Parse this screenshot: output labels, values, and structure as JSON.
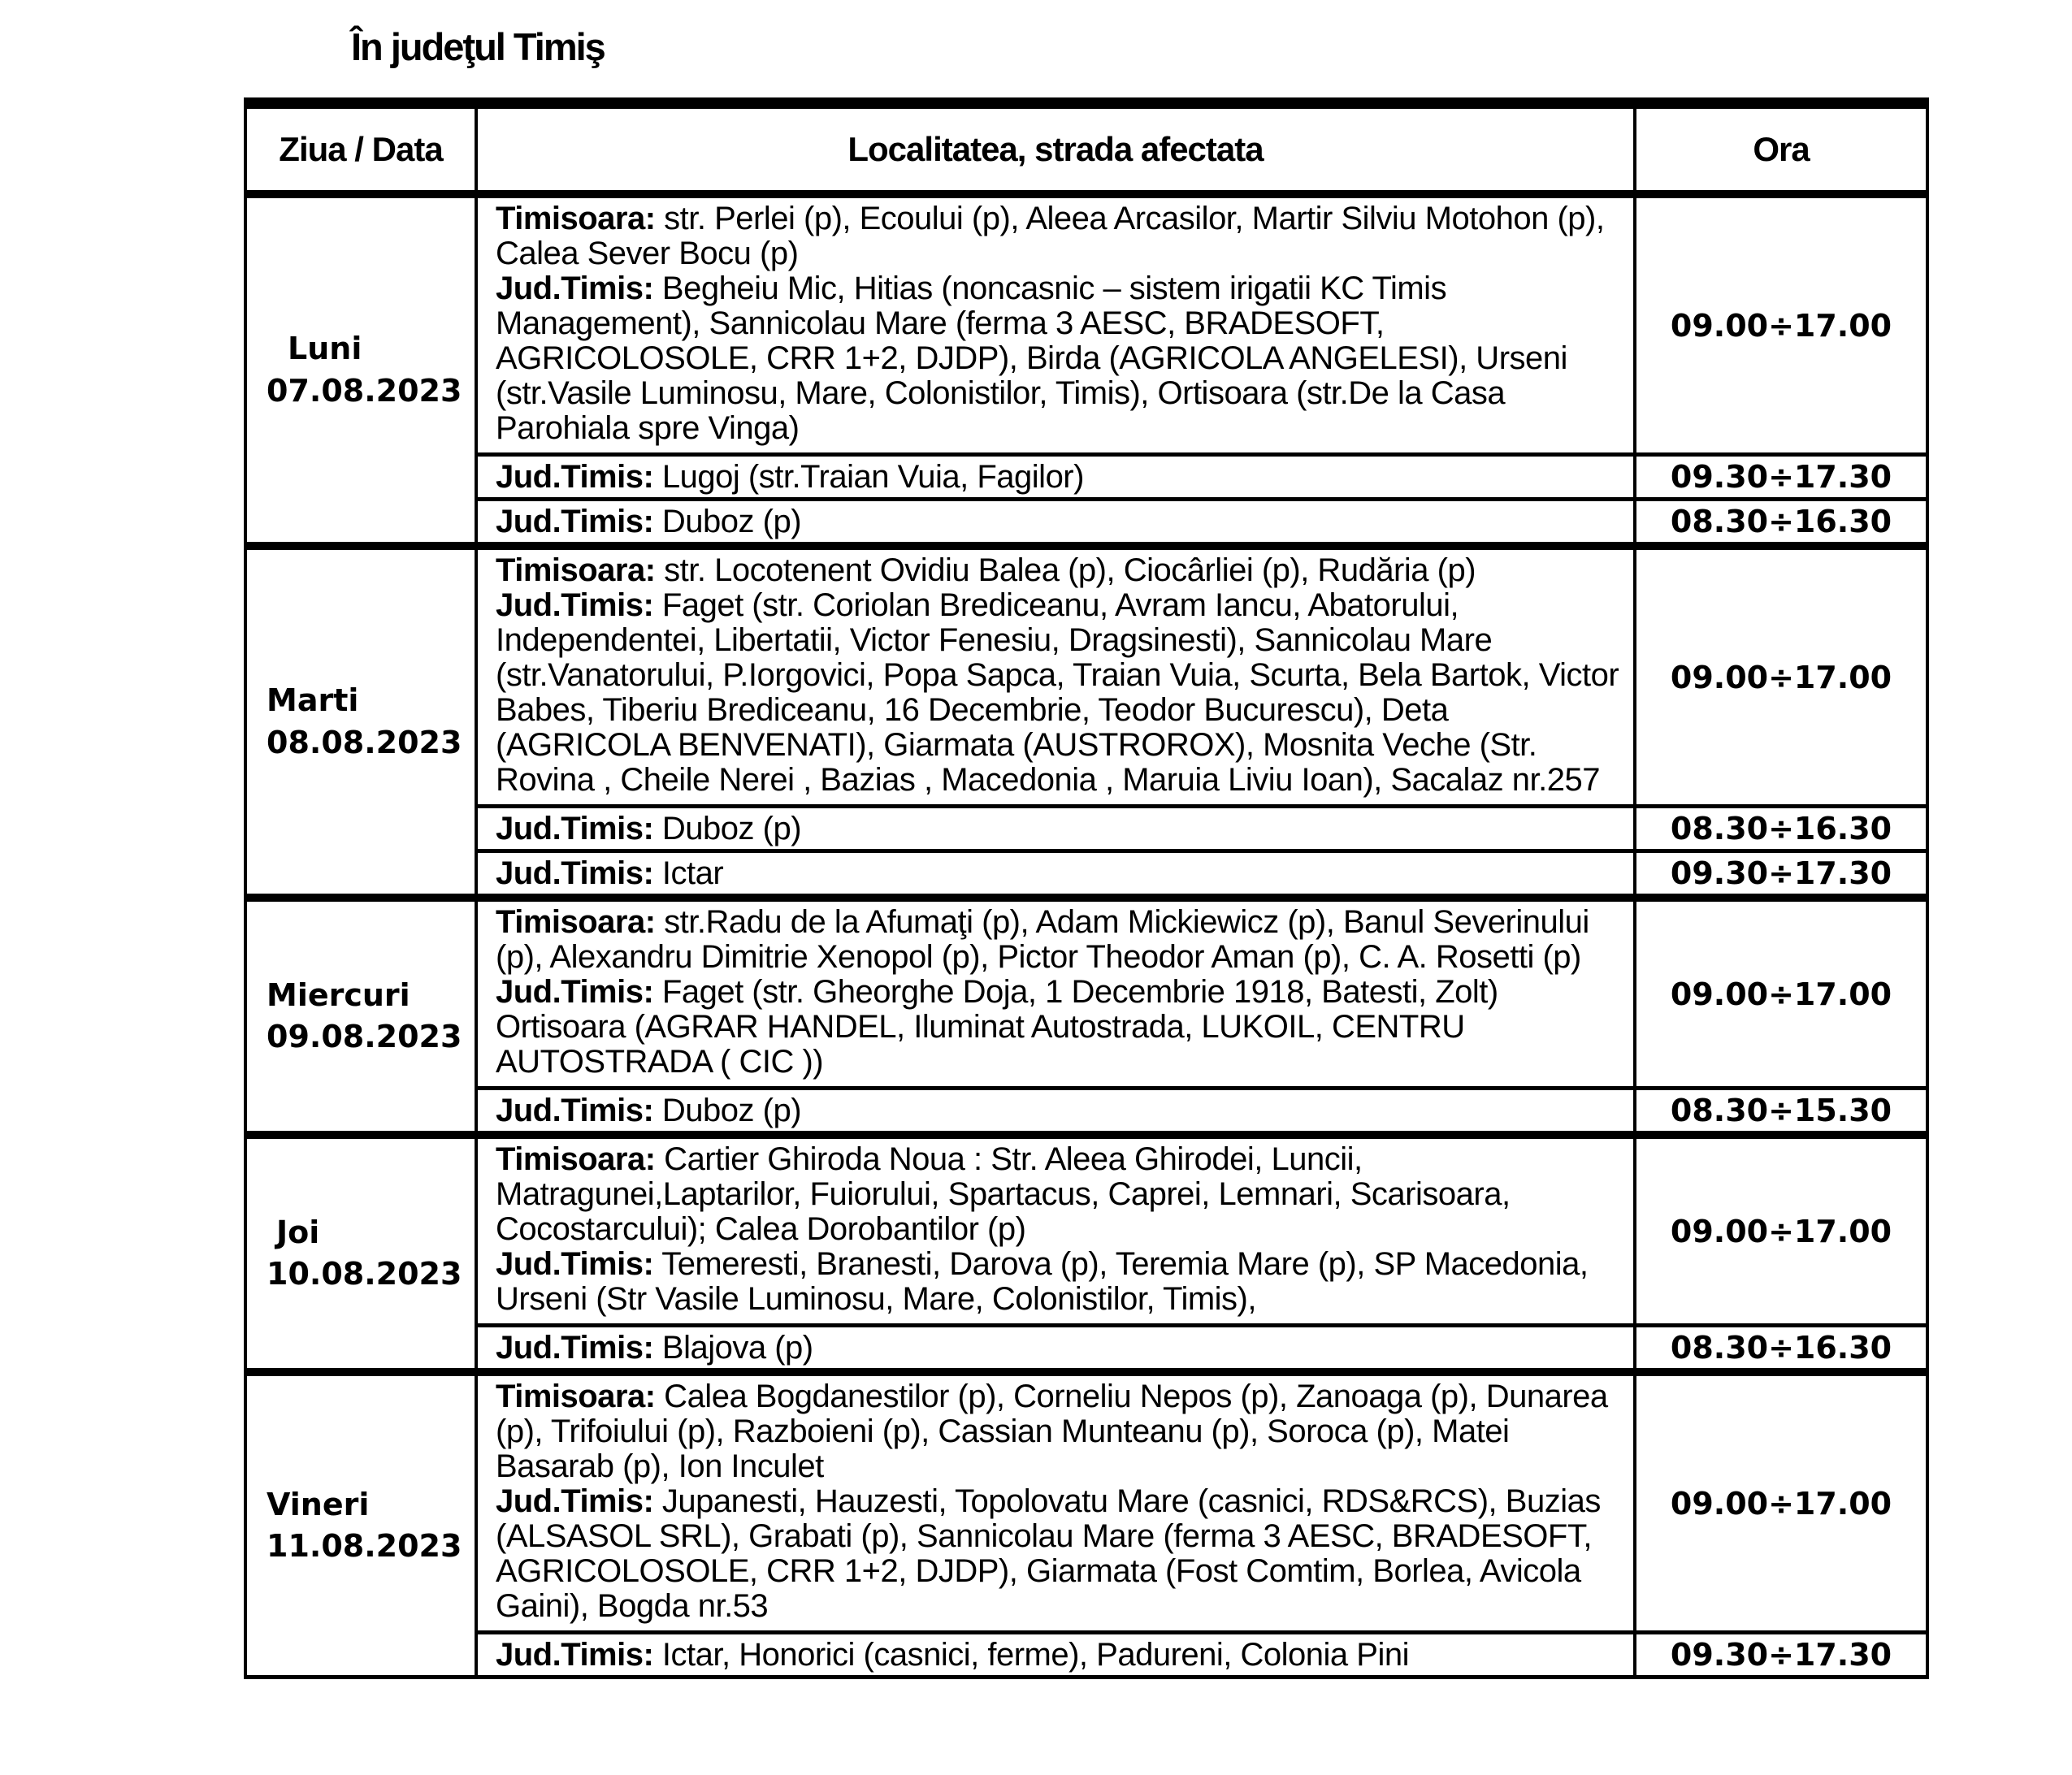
{
  "page": {
    "title": "În judeţul Timiş"
  },
  "table": {
    "headers": {
      "day": "Ziua / Data",
      "location": "Localitatea, strada afectata",
      "time": "Ora"
    },
    "groups": [
      {
        "day": "Luni",
        "date": "07.08.2023",
        "rows": [
          {
            "time": "09.00÷17.00",
            "segments": [
              {
                "label": "Timisoara:",
                "text": " str. Perlei (p), Ecoului (p), Aleea Arcasilor, Martir Silviu Motohon (p), Calea Sever Bocu (p)"
              },
              {
                "label": "Jud.Timis:",
                "text": " Begheiu Mic, Hitias (noncasnic – sistem irigatii KC Timis Management), Sannicolau Mare (ferma 3 AESC, BRADESOFT, AGRICOLOSOLE, CRR 1+2, DJDP), Birda (AGRICOLA ANGELESI), Urseni (str.Vasile Luminosu, Mare, Colonistilor, Timis), Ortisoara (str.De la Casa Parohiala spre Vinga)"
              }
            ]
          },
          {
            "time": "09.30÷17.30",
            "segments": [
              {
                "label": "Jud.Timis:",
                "text": " Lugoj (str.Traian Vuia, Fagilor)"
              }
            ]
          },
          {
            "time": "08.30÷16.30",
            "segments": [
              {
                "label": "Jud.Timis:",
                "text": " Duboz (p)"
              }
            ]
          }
        ]
      },
      {
        "day": "Marti",
        "date": "08.08.2023",
        "rows": [
          {
            "time": "09.00÷17.00",
            "segments": [
              {
                "label": "Timisoara:",
                "text": " str. Locotenent Ovidiu Balea (p), Ciocârliei (p), Rudăria (p)"
              },
              {
                "label": "Jud.Timis:",
                "text": " Faget (str. Coriolan Brediceanu, Avram Iancu, Abatorului, Independentei, Libertatii, Victor Fenesiu, Dragsinesti), Sannicolau Mare (str.Vanatorului, P.Iorgovici, Popa Sapca, Traian Vuia, Scurta, Bela Bartok, Victor Babes, Tiberiu Brediceanu, 16 Decembrie, Teodor Bucurescu), Deta (AGRICOLA BENVENATI), Giarmata (AUSTROROX), Mosnita Veche (Str. Rovina , Cheile Nerei , Bazias , Macedonia , Maruia Liviu Ioan), Sacalaz nr.257"
              }
            ]
          },
          {
            "time": "08.30÷16.30",
            "segments": [
              {
                "label": "Jud.Timis:",
                "text": " Duboz (p)"
              }
            ]
          },
          {
            "time": "09.30÷17.30",
            "segments": [
              {
                "label": "Jud.Timis:",
                "text": " Ictar"
              }
            ]
          }
        ]
      },
      {
        "day": "Miercuri",
        "date": "09.08.2023",
        "rows": [
          {
            "time": "09.00÷17.00",
            "segments": [
              {
                "label": "Timisoara:",
                "text": " str.Radu de la Afumaţi (p), Adam Mickiewicz (p), Banul Severinului (p), Alexandru Dimitrie Xenopol (p), Pictor Theodor Aman (p), C. A. Rosetti (p)"
              },
              {
                "label": "Jud.Timis:",
                "text": " Faget (str. Gheorghe Doja, 1 Decembrie 1918, Batesti, Zolt) Ortisoara (AGRAR HANDEL, Iluminat Autostrada, LUKOIL, CENTRU AUTOSTRADA ( CIC ))"
              }
            ]
          },
          {
            "time": "08.30÷15.30",
            "segments": [
              {
                "label": "Jud.Timis:",
                "text": " Duboz (p)"
              }
            ]
          }
        ]
      },
      {
        "day": "Joi",
        "date": "10.08.2023",
        "rows": [
          {
            "time": "09.00÷17.00",
            "segments": [
              {
                "label": "Timisoara:",
                "text": " Cartier Ghiroda Noua : Str. Aleea Ghirodei, Luncii, Matragunei,Laptarilor, Fuiorului, Spartacus, Caprei, Lemnari, Scarisoara, Cocostarcului); Calea Dorobantilor (p)"
              },
              {
                "label": "Jud.Timis:",
                "text": " Temeresti, Branesti, Darova (p), Teremia Mare (p), SP Macedonia, Urseni (Str Vasile Luminosu, Mare,  Colonistilor, Timis),"
              }
            ]
          },
          {
            "time": "08.30÷16.30",
            "segments": [
              {
                "label": "Jud.Timis:",
                "text": " Blajova (p)"
              }
            ]
          }
        ]
      },
      {
        "day": "Vineri",
        "date": "11.08.2023",
        "rows": [
          {
            "time": "09.00÷17.00",
            "segments": [
              {
                "label": "Timisoara:",
                "text": " Calea Bogdanestilor (p), Corneliu Nepos (p), Zanoaga (p), Dunarea (p), Trifoiului (p), Razboieni (p),  Cassian Munteanu (p), Soroca (p), Matei Basarab (p), Ion Inculet"
              },
              {
                "label": "Jud.Timis:",
                "text": " Jupanesti, Hauzesti, Topolovatu Mare (casnici, RDS&RCS), Buzias (ALSASOL SRL), Grabati (p), Sannicolau Mare (ferma 3 AESC, BRADESOFT, AGRICOLOSOLE, CRR 1+2, DJDP), Giarmata (Fost Comtim, Borlea, Avicola Gaini), Bogda nr.53"
              }
            ]
          },
          {
            "time": "09.30÷17.30",
            "segments": [
              {
                "label": "Jud.Timis:",
                "text": " Ictar, Honorici (casnici, ferme), Padureni, Colonia Pini"
              }
            ]
          }
        ]
      }
    ]
  }
}
